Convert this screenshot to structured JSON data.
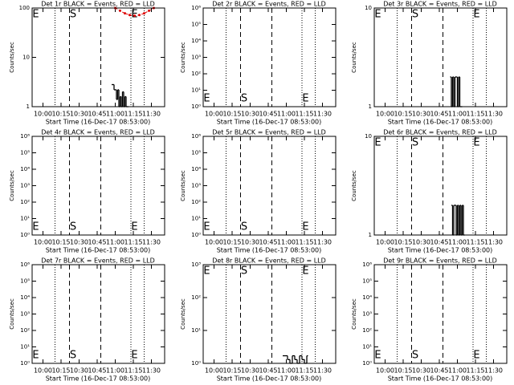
{
  "shared": {
    "xlabel": "Start Time (16-Dec-17 08:53:00)",
    "ylabel": "Counts/sec",
    "xlim": [
      591,
      701
    ],
    "xticks": [
      {
        "value": 600,
        "label": "10:00"
      },
      {
        "value": 615,
        "label": "10:15"
      },
      {
        "value": 630,
        "label": "10:30"
      },
      {
        "value": 645,
        "label": "10:45"
      },
      {
        "value": 660,
        "label": "11:00"
      },
      {
        "value": 675,
        "label": "11:15"
      },
      {
        "value": 690,
        "label": "11:30"
      }
    ],
    "markers": [
      {
        "x": 610,
        "style": "dotted"
      },
      {
        "x": 622,
        "style": "dashed"
      },
      {
        "x": 648,
        "style": "dashed"
      },
      {
        "x": 673,
        "style": "dotted"
      },
      {
        "x": 684,
        "style": "dotted"
      }
    ],
    "letters": [
      {
        "text": "E",
        "x": 594
      },
      {
        "text": "S",
        "x": 625
      },
      {
        "text": "E",
        "x": 676
      }
    ],
    "log_y": true
  },
  "chart_data": [
    {
      "type": "line",
      "title": "Det 1r BLACK = Events, RED = LLD",
      "letter_row": "top",
      "ylim": [
        1,
        100
      ],
      "yticks": [
        1,
        10,
        100
      ],
      "series": [
        {
          "color": "#000000",
          "step": true,
          "x": [
            657,
            658,
            659,
            660,
            661,
            662,
            663,
            664,
            665,
            666,
            667,
            668,
            669,
            670
          ],
          "values": [
            2.8,
            2.8,
            2.2,
            2.2,
            1.4,
            2.2,
            1,
            1.6,
            1,
            2,
            1,
            1.6,
            1,
            1
          ]
        },
        {
          "color": "#dd0000",
          "step": false,
          "x": [
            660,
            664,
            668,
            672,
            676,
            680,
            684,
            688,
            692
          ],
          "values": [
            100,
            88,
            78,
            72,
            70,
            72,
            78,
            88,
            100
          ]
        }
      ]
    },
    {
      "type": "line",
      "title": "Det 2r BLACK = Events, RED = LLD",
      "letter_row": "bottom",
      "ylim": [
        1,
        1000000
      ],
      "yticks": [
        {
          "value": 1,
          "label": "10⁰"
        },
        {
          "value": 10,
          "label": "10¹"
        },
        {
          "value": 100,
          "label": "10²"
        },
        {
          "value": 1000,
          "label": "10³"
        },
        {
          "value": 10000,
          "label": "10⁴"
        },
        {
          "value": 100000,
          "label": "10⁵"
        },
        {
          "value": 1000000,
          "label": "10⁶"
        }
      ],
      "series": []
    },
    {
      "type": "line",
      "title": "Det 3r BLACK = Events, RED = LLD",
      "letter_row": "top",
      "ylim": [
        1,
        10
      ],
      "yticks": [
        1,
        10
      ],
      "series": [
        {
          "color": "#000000",
          "step": true,
          "x": [
            654,
            655,
            656,
            657,
            658,
            659,
            660,
            661,
            662,
            663
          ],
          "values": [
            2,
            1,
            2,
            1,
            2,
            2,
            1,
            2,
            1,
            1
          ]
        }
      ]
    },
    {
      "type": "line",
      "title": "Det 4r BLACK = Events, RED = LLD",
      "letter_row": "bottom",
      "ylim": [
        1,
        1000000
      ],
      "yticks": [
        {
          "value": 1,
          "label": "10⁰"
        },
        {
          "value": 10,
          "label": "10¹"
        },
        {
          "value": 100,
          "label": "10²"
        },
        {
          "value": 1000,
          "label": "10³"
        },
        {
          "value": 10000,
          "label": "10⁴"
        },
        {
          "value": 100000,
          "label": "10⁵"
        },
        {
          "value": 1000000,
          "label": "10⁶"
        }
      ],
      "series": []
    },
    {
      "type": "line",
      "title": "Det 5r BLACK = Events, RED = LLD",
      "letter_row": "bottom",
      "ylim": [
        1,
        1000000
      ],
      "yticks": [
        {
          "value": 1,
          "label": "10⁰"
        },
        {
          "value": 10,
          "label": "10¹"
        },
        {
          "value": 100,
          "label": "10²"
        },
        {
          "value": 1000,
          "label": "10³"
        },
        {
          "value": 10000,
          "label": "10⁴"
        },
        {
          "value": 100000,
          "label": "10⁵"
        },
        {
          "value": 1000000,
          "label": "10⁶"
        }
      ],
      "series": []
    },
    {
      "type": "line",
      "title": "Det 6r BLACK = Events, RED = LLD",
      "letter_row": "top",
      "ylim": [
        1,
        10
      ],
      "yticks": [
        1,
        10
      ],
      "series": [
        {
          "color": "#000000",
          "step": true,
          "x": [
            655,
            656,
            657,
            658,
            659,
            660,
            661,
            662,
            663,
            664,
            665
          ],
          "values": [
            2,
            1,
            2,
            2,
            1,
            2,
            1,
            2,
            1,
            2,
            1
          ]
        }
      ]
    },
    {
      "type": "line",
      "title": "Det 7r BLACK = Events, RED = LLD",
      "letter_row": "bottom",
      "ylim": [
        1,
        1000000
      ],
      "yticks": [
        {
          "value": 1,
          "label": "10⁰"
        },
        {
          "value": 10,
          "label": "10¹"
        },
        {
          "value": 100,
          "label": "10²"
        },
        {
          "value": 1000,
          "label": "10³"
        },
        {
          "value": 10000,
          "label": "10⁴"
        },
        {
          "value": 100000,
          "label": "10⁵"
        },
        {
          "value": 1000000,
          "label": "10⁶"
        }
      ],
      "series": []
    },
    {
      "type": "line",
      "title": "Det 8r BLACK = Events, RED = LLD",
      "letter_row": "top",
      "ylim": [
        1,
        1000
      ],
      "yticks": [
        {
          "value": 1,
          "label": "10⁰"
        },
        {
          "value": 10,
          "label": "10¹"
        },
        {
          "value": 100,
          "label": "10²"
        },
        {
          "value": 1000,
          "label": "10³"
        }
      ],
      "series": [
        {
          "color": "#000000",
          "step": true,
          "x": [
            657,
            659,
            661,
            663,
            665,
            667,
            669,
            671,
            673,
            675,
            677
          ],
          "values": [
            1.7,
            1.7,
            1.3,
            1,
            1.7,
            1.3,
            1,
            1.7,
            1.3,
            1,
            1.7
          ]
        }
      ]
    },
    {
      "type": "line",
      "title": "Det 9r BLACK = Events, RED = LLD",
      "letter_row": "bottom",
      "ylim": [
        1,
        1000000
      ],
      "yticks": [
        {
          "value": 1,
          "label": "10⁰"
        },
        {
          "value": 10,
          "label": "10¹"
        },
        {
          "value": 100,
          "label": "10²"
        },
        {
          "value": 1000,
          "label": "10³"
        },
        {
          "value": 10000,
          "label": "10⁴"
        },
        {
          "value": 100000,
          "label": "10⁵"
        },
        {
          "value": 1000000,
          "label": "10⁶"
        }
      ],
      "series": []
    }
  ]
}
